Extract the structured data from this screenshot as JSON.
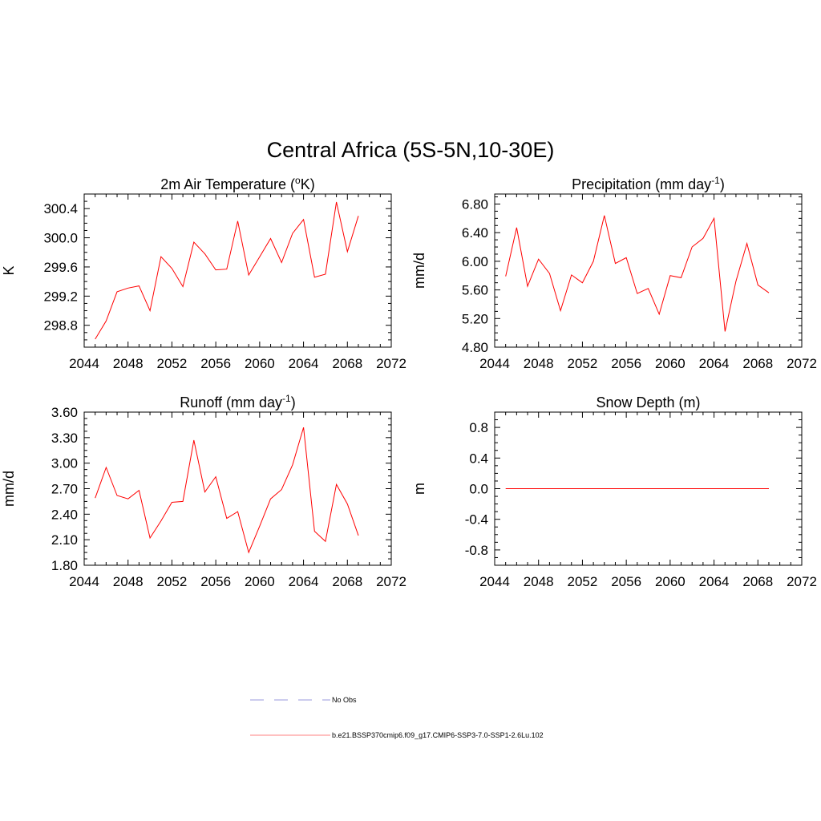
{
  "figure": {
    "title": "Central Africa (5S-5N,10-30E)"
  },
  "legend": {
    "entries": [
      {
        "label": "No Obs",
        "color": "#9999dd",
        "style": "dashed"
      },
      {
        "label": "b.e21.BSSP370cmip6.f09_g17.CMIP6-SSP3-7.0-SSP1-2.6Lu.102",
        "color": "#ff8080",
        "style": "solid"
      }
    ]
  },
  "chart_data": [
    {
      "type": "line",
      "title": "2m Air Temperature (",
      "title_sup": "o",
      "title_after": "K)",
      "xlabel": "",
      "ylabel": "K",
      "xlim": [
        2044,
        2072
      ],
      "ylim": [
        298.5,
        300.6
      ],
      "xticks": [
        "2044",
        "2048",
        "2052",
        "2056",
        "2060",
        "2064",
        "2068",
        "2072"
      ],
      "yticks": [
        "298.8",
        "299.2",
        "299.6",
        "300.0",
        "300.4"
      ],
      "grid": false,
      "x": [
        2045,
        2046,
        2047,
        2048,
        2049,
        2050,
        2051,
        2052,
        2053,
        2054,
        2055,
        2056,
        2057,
        2058,
        2059,
        2060,
        2061,
        2062,
        2063,
        2064,
        2065,
        2066,
        2067,
        2068,
        2069
      ],
      "series": [
        {
          "color": "#ff0000",
          "values": [
            298.61,
            298.86,
            299.26,
            299.31,
            299.34,
            299.0,
            299.74,
            299.58,
            299.33,
            299.94,
            299.78,
            299.56,
            299.57,
            300.23,
            299.49,
            299.74,
            299.99,
            299.66,
            300.06,
            300.25,
            299.46,
            299.5,
            300.49,
            299.81,
            300.3
          ]
        }
      ]
    },
    {
      "type": "line",
      "title": "Precipitation (mm day",
      "title_sup": "-1",
      "title_after": ")",
      "xlabel": "",
      "ylabel": "mm/d",
      "xlim": [
        2044,
        2072
      ],
      "ylim": [
        4.8,
        6.94
      ],
      "xticks": [
        "2044",
        "2048",
        "2052",
        "2056",
        "2060",
        "2064",
        "2068",
        "2072"
      ],
      "yticks": [
        "4.80",
        "5.20",
        "5.60",
        "6.00",
        "6.40",
        "6.80"
      ],
      "grid": false,
      "x": [
        2045,
        2046,
        2047,
        2048,
        2049,
        2050,
        2051,
        2052,
        2053,
        2054,
        2055,
        2056,
        2057,
        2058,
        2059,
        2060,
        2061,
        2062,
        2063,
        2064,
        2065,
        2066,
        2067,
        2068,
        2069
      ],
      "series": [
        {
          "color": "#ff0000",
          "values": [
            5.79,
            6.47,
            5.65,
            6.03,
            5.83,
            5.31,
            5.81,
            5.7,
            6.0,
            6.64,
            5.97,
            6.05,
            5.55,
            5.62,
            5.26,
            5.8,
            5.77,
            6.2,
            6.32,
            6.6,
            5.02,
            5.72,
            6.25,
            5.67,
            5.56
          ]
        }
      ]
    },
    {
      "type": "line",
      "title": "Runoff (mm day",
      "title_sup": "-1",
      "title_after": ")",
      "xlabel": "",
      "ylabel": "mm/d",
      "xlim": [
        2044,
        2072
      ],
      "ylim": [
        1.8,
        3.6
      ],
      "xticks": [
        "2044",
        "2048",
        "2052",
        "2056",
        "2060",
        "2064",
        "2068",
        "2072"
      ],
      "yticks": [
        "1.80",
        "2.10",
        "2.40",
        "2.70",
        "3.00",
        "3.30",
        "3.60"
      ],
      "grid": false,
      "x": [
        2045,
        2046,
        2047,
        2048,
        2049,
        2050,
        2051,
        2052,
        2053,
        2054,
        2055,
        2056,
        2057,
        2058,
        2059,
        2060,
        2061,
        2062,
        2063,
        2064,
        2065,
        2066,
        2067,
        2068,
        2069
      ],
      "series": [
        {
          "color": "#ff0000",
          "values": [
            2.59,
            2.95,
            2.62,
            2.58,
            2.68,
            2.12,
            2.32,
            2.54,
            2.55,
            3.27,
            2.66,
            2.84,
            2.35,
            2.43,
            1.95,
            2.26,
            2.58,
            2.69,
            2.98,
            3.42,
            2.2,
            2.08,
            2.75,
            2.52,
            2.15
          ]
        }
      ]
    },
    {
      "type": "line",
      "title": "Snow Depth (m)",
      "title_sup": "",
      "title_after": "",
      "xlabel": "",
      "ylabel": "m",
      "xlim": [
        2044,
        2072
      ],
      "ylim": [
        -1.0,
        1.0
      ],
      "xticks": [
        "2044",
        "2048",
        "2052",
        "2056",
        "2060",
        "2064",
        "2068",
        "2072"
      ],
      "yticks": [
        "-0.8",
        "-0.4",
        "0.0",
        "0.4",
        "0.8"
      ],
      "grid": false,
      "x": [
        2045,
        2046,
        2047,
        2048,
        2049,
        2050,
        2051,
        2052,
        2053,
        2054,
        2055,
        2056,
        2057,
        2058,
        2059,
        2060,
        2061,
        2062,
        2063,
        2064,
        2065,
        2066,
        2067,
        2068,
        2069
      ],
      "series": [
        {
          "color": "#ff0000",
          "values": [
            0,
            0,
            0,
            0,
            0,
            0,
            0,
            0,
            0,
            0,
            0,
            0,
            0,
            0,
            0,
            0,
            0,
            0,
            0,
            0,
            0,
            0,
            0,
            0,
            0
          ]
        }
      ]
    }
  ]
}
